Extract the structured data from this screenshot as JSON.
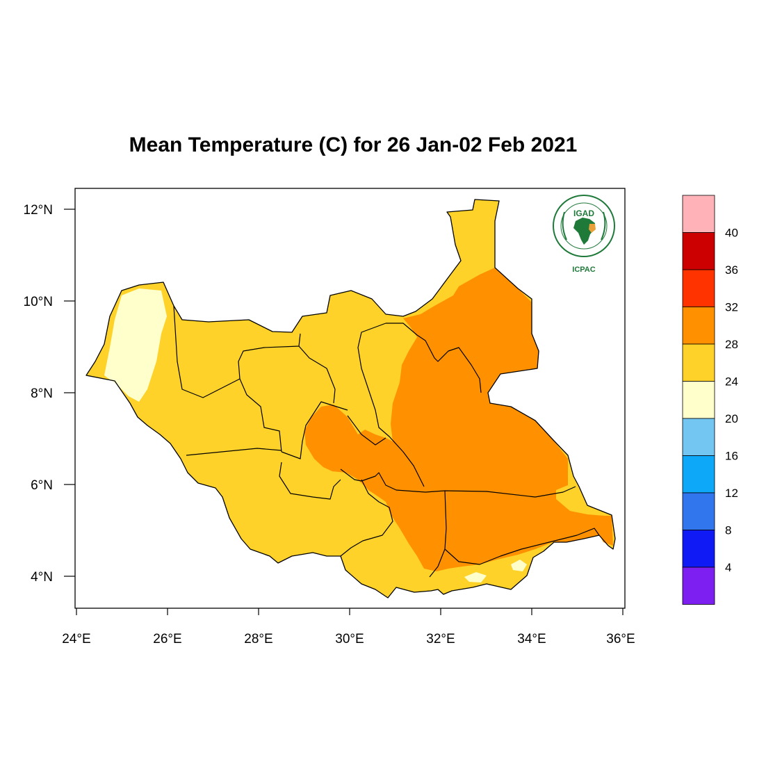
{
  "title": "Mean Temperature (C) for 26 Jan-02 Feb 2021",
  "longitude_ticks": [
    "24°E",
    "26°E",
    "28°E",
    "30°E",
    "32°E",
    "34°E",
    "36°E"
  ],
  "latitude_ticks": [
    "12°N",
    "10°N",
    "8°N",
    "6°N",
    "4°N"
  ],
  "logo": {
    "badge_text": "IGAD",
    "caption": "ICPAC",
    "color": "#1f7a3a"
  },
  "colorbar": {
    "labels": [
      "40",
      "36",
      "32",
      "28",
      "24",
      "20",
      "16",
      "12",
      "8",
      "4"
    ],
    "colors": [
      "#ffb3b9",
      "#cc0000",
      "#ff3300",
      "#ff9100",
      "#fed229",
      "#ffffcc",
      "#73c6f2",
      "#0da9f8",
      "#3276ee",
      "#0f1af5",
      "#7d1ff0"
    ]
  },
  "chart_data": {
    "type": "heatmap",
    "title": "Mean Temperature (C) for 26 Jan-02 Feb 2021",
    "xlim": [
      24,
      36
    ],
    "ylim": [
      3.4,
      12.4
    ],
    "xticks": [
      24,
      26,
      28,
      30,
      32,
      34,
      36
    ],
    "yticks": [
      12,
      10,
      8,
      6,
      4
    ],
    "levels": [
      4,
      8,
      12,
      16,
      20,
      24,
      28,
      32,
      36,
      40
    ],
    "regions": [
      {
        "area": "northwest",
        "range": "20-24"
      },
      {
        "area": "west, southwest and north",
        "range": "24-28"
      },
      {
        "area": "east, northeast and south-central",
        "range": "28-32"
      }
    ]
  }
}
